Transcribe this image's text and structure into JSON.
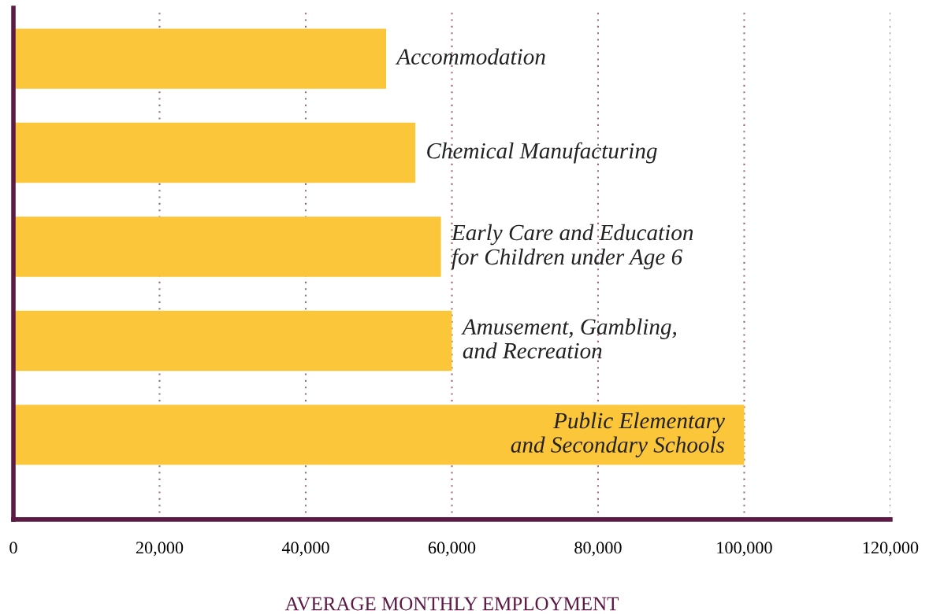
{
  "chart_data": {
    "type": "bar",
    "orientation": "horizontal",
    "xlabel": "AVERAGE MONTHLY EMPLOYMENT",
    "categories": [
      "Accommodation",
      "Chemical Manufacturing",
      "Early Care and Education\nfor Children under Age 6",
      "Amusement, Gambling,\nand Recreation",
      "Public Elementary\nand Secondary Schools"
    ],
    "values": [
      51000,
      55000,
      58500,
      60000,
      100000
    ],
    "color": "#fcc63a",
    "xlim": [
      0,
      120000
    ],
    "xticks": [
      0,
      {
        "value": 20000,
        "label": "20,000"
      },
      {
        "value": 40000,
        "label": "40,000"
      },
      {
        "value": 60000,
        "label": "60,000"
      },
      {
        "value": 80000,
        "label": "80,000"
      },
      {
        "value": 100000,
        "label": "100,000"
      },
      {
        "value": 120000,
        "label": "120,000"
      }
    ],
    "grid": "x",
    "tick_labels": "x"
  }
}
